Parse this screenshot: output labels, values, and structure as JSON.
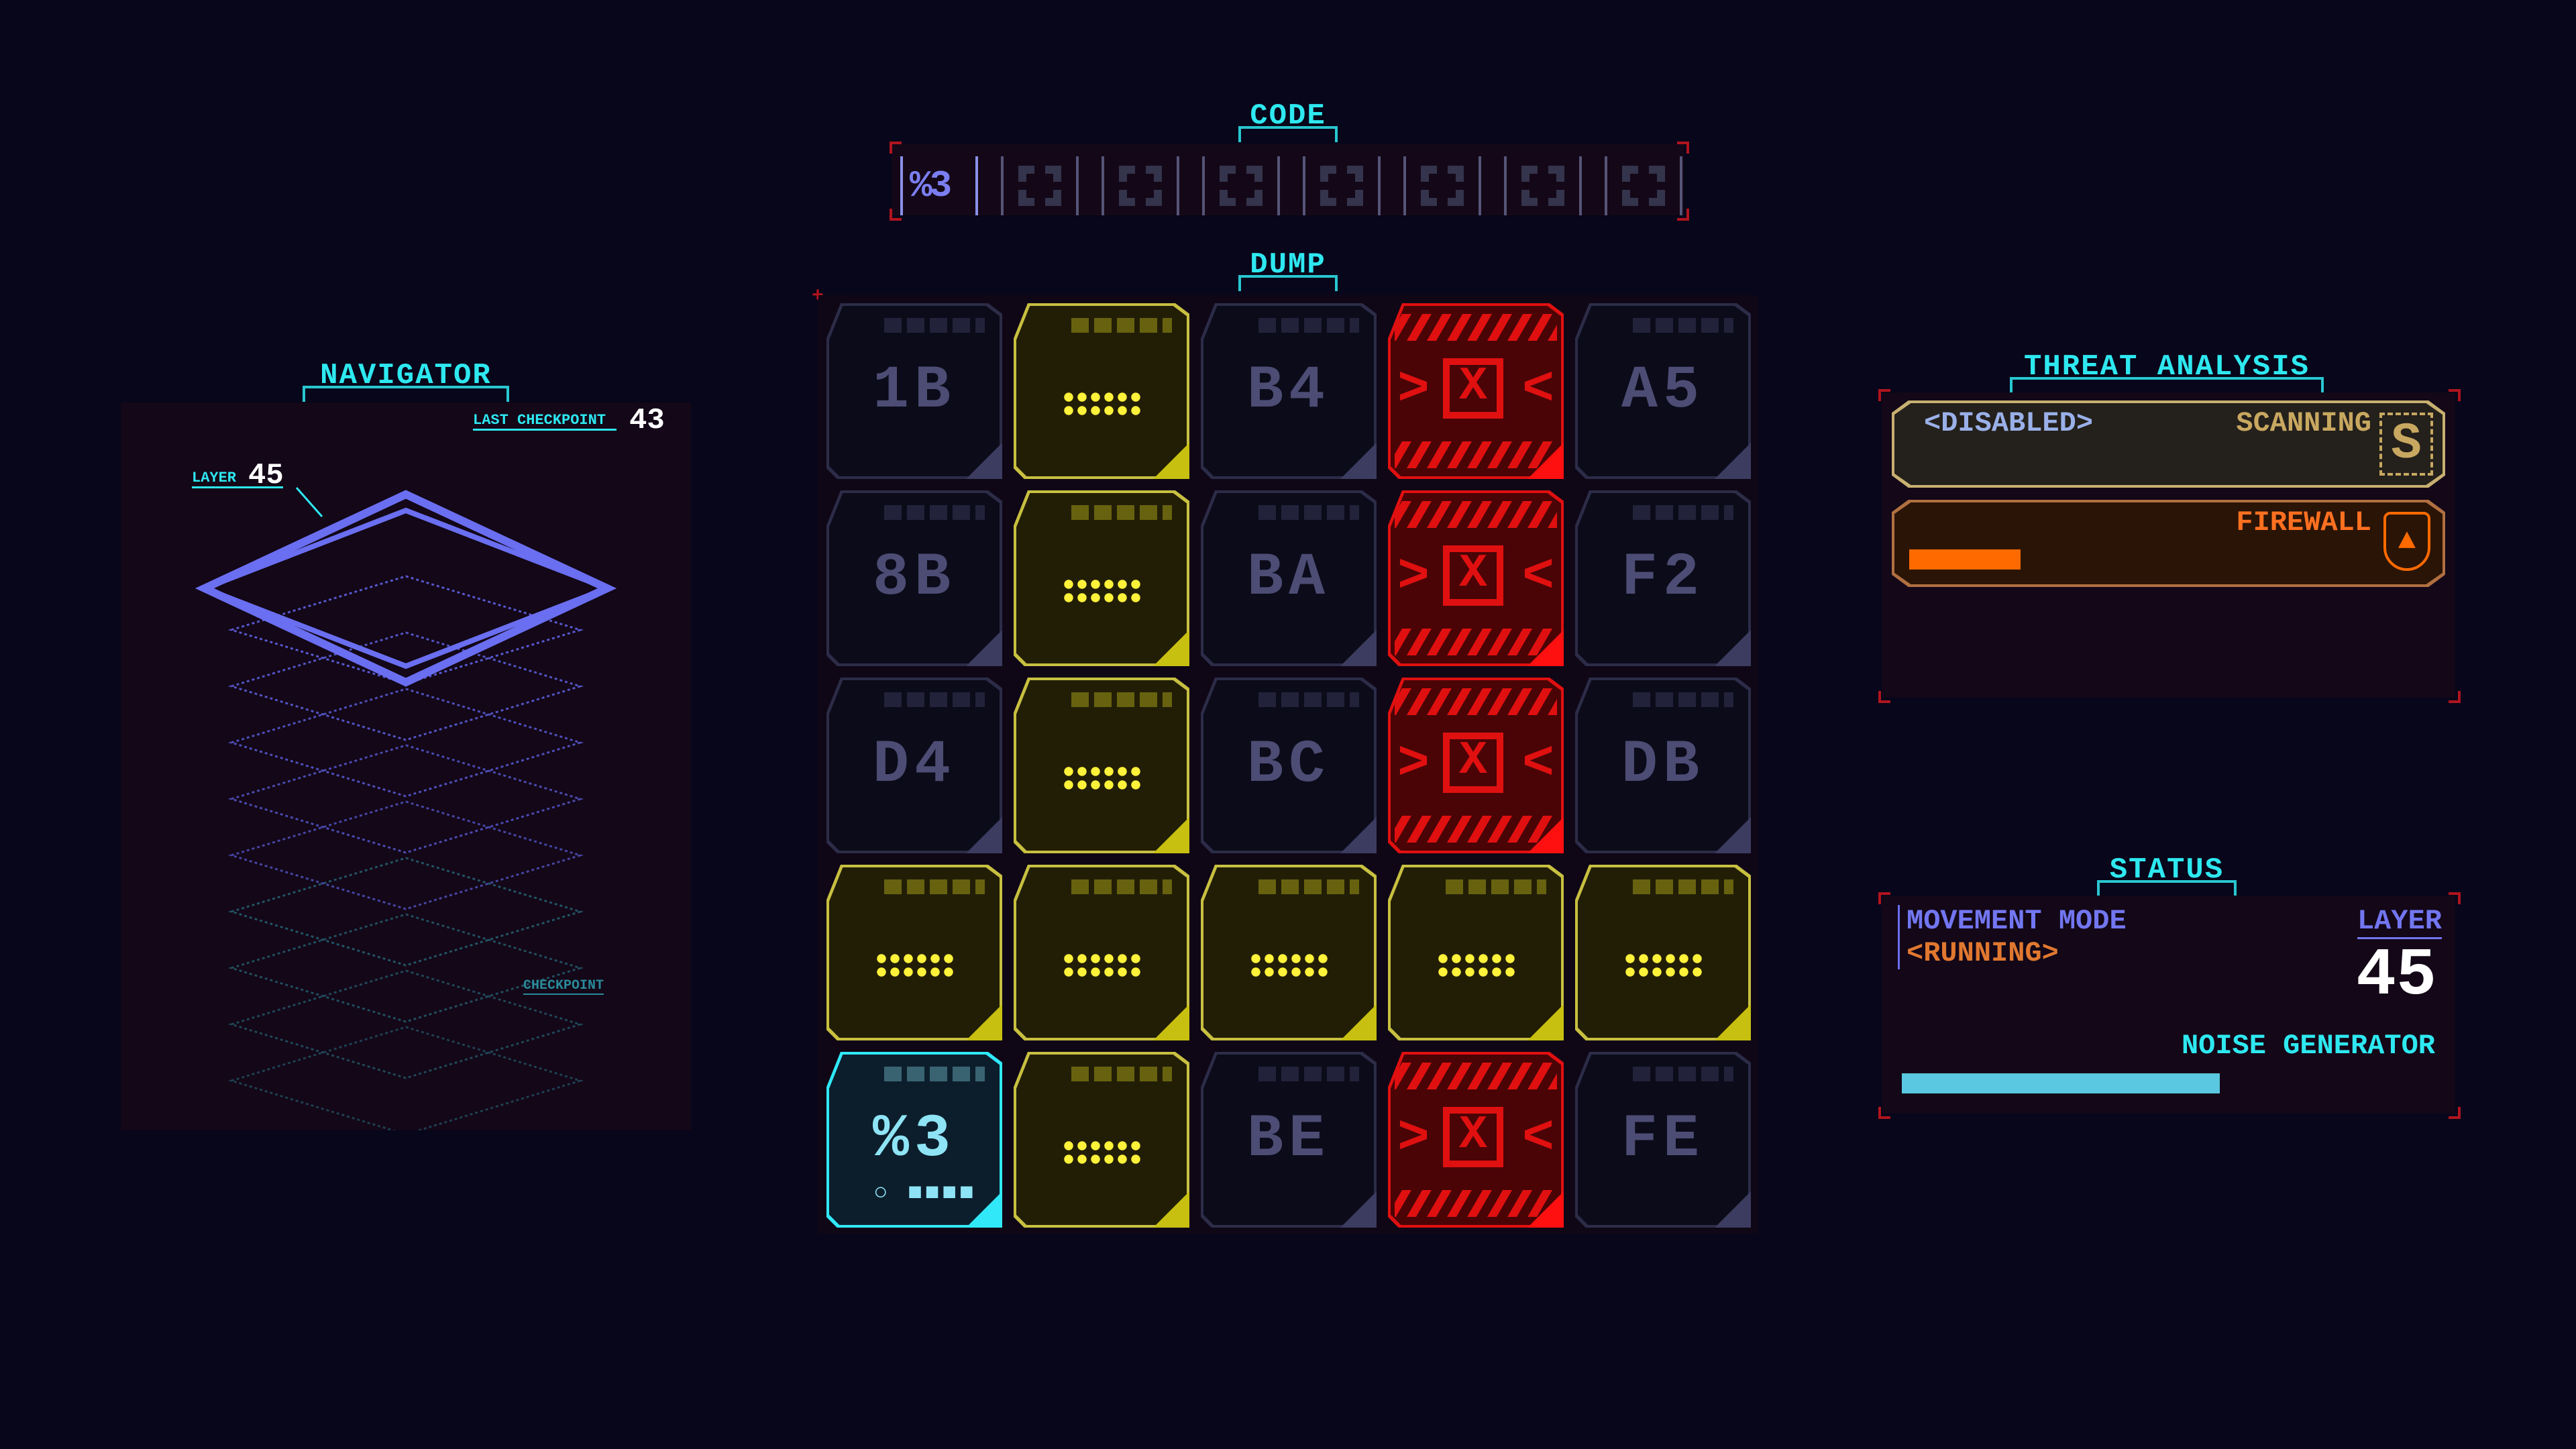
{
  "code": {
    "title": "CODE",
    "slots": 8,
    "entered": [
      "%3"
    ]
  },
  "dump": {
    "title": "DUMP",
    "grid": [
      [
        {
          "type": "dark",
          "code": "1B"
        },
        {
          "type": "yellow"
        },
        {
          "type": "dark",
          "code": "B4"
        },
        {
          "type": "red"
        },
        {
          "type": "dark",
          "code": "A5"
        }
      ],
      [
        {
          "type": "dark",
          "code": "8B"
        },
        {
          "type": "yellow"
        },
        {
          "type": "dark",
          "code": "BA"
        },
        {
          "type": "red"
        },
        {
          "type": "dark",
          "code": "F2"
        }
      ],
      [
        {
          "type": "dark",
          "code": "D4"
        },
        {
          "type": "yellow"
        },
        {
          "type": "dark",
          "code": "BC"
        },
        {
          "type": "red"
        },
        {
          "type": "dark",
          "code": "DB"
        }
      ],
      [
        {
          "type": "yellow"
        },
        {
          "type": "yellow"
        },
        {
          "type": "yellow"
        },
        {
          "type": "yellow"
        },
        {
          "type": "yellow"
        }
      ],
      [
        {
          "type": "cyan",
          "code": "%3"
        },
        {
          "type": "yellow"
        },
        {
          "type": "dark",
          "code": "BE"
        },
        {
          "type": "red"
        },
        {
          "type": "dark",
          "code": "FE"
        }
      ]
    ]
  },
  "navigator": {
    "title": "NAVIGATOR",
    "last_checkpoint_label": "LAST CHECKPOINT",
    "last_checkpoint": "43",
    "layer_label": "LAYER",
    "layer": "45",
    "checkpoint_label": "CHECKPOINT"
  },
  "threat": {
    "title": "THREAT ANALYSIS",
    "scan_state": "<DISABLED>",
    "scan_label": "SCANNING",
    "scan_icon": "S",
    "firewall_label": "FIREWALL",
    "firewall_level": 0.24
  },
  "status": {
    "title": "STATUS",
    "movement_label": "MOVEMENT MODE",
    "movement_value": "<RUNNING>",
    "layer_label": "LAYER",
    "layer": "45",
    "noise_label": "NOISE GENERATOR",
    "noise_level": 0.6
  },
  "colors": {
    "accent": "#2ee8f0",
    "danger": "#e01010",
    "warning": "#e8e020",
    "firewall": "#ff6a00",
    "layer": "#6b6ef0"
  }
}
